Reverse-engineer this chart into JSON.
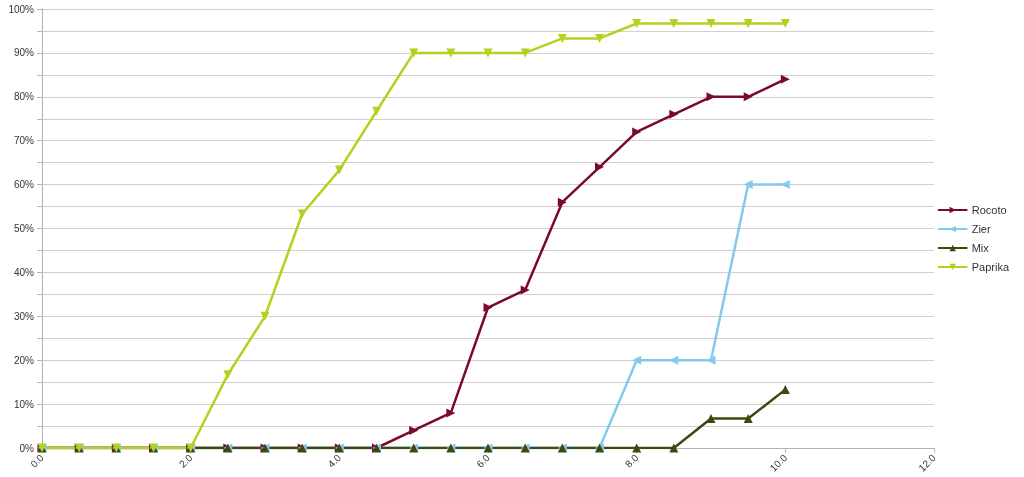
{
  "chart_data": {
    "type": "line",
    "x": [
      0,
      0.5,
      1,
      1.5,
      2,
      2.5,
      3,
      3.5,
      4,
      4.5,
      5,
      5.5,
      6,
      6.5,
      7,
      7.5,
      8,
      8.5,
      9,
      9.5,
      10
    ],
    "series": [
      {
        "name": "Rocoto",
        "color": "#7b0a2a",
        "values": [
          0,
          0,
          0,
          0,
          0,
          0,
          0,
          0,
          0,
          0,
          4,
          8,
          32,
          36,
          56,
          64,
          72,
          76,
          80,
          80,
          84
        ]
      },
      {
        "name": "Zier",
        "color": "#83caec",
        "values": [
          0,
          0,
          0,
          0,
          0,
          0,
          0,
          0,
          0,
          0,
          0,
          0,
          0,
          0,
          0,
          0,
          20,
          20,
          20,
          60,
          60
        ]
      },
      {
        "name": "Mix",
        "color": "#3b4a10",
        "values": [
          0,
          0,
          0,
          0,
          0,
          0,
          0,
          0,
          0,
          0,
          0,
          0,
          0,
          0,
          0,
          0,
          0,
          0,
          6.7,
          6.7,
          13.3
        ]
      },
      {
        "name": "Paprika",
        "color": "#b4d11e",
        "values": [
          0,
          0,
          0,
          0,
          0,
          16.7,
          30,
          53.3,
          63.3,
          76.7,
          90,
          90,
          90,
          90,
          93.3,
          93.3,
          96.7,
          96.7,
          96.7,
          96.7,
          96.7
        ]
      }
    ],
    "xlim": [
      0,
      12
    ],
    "xticks": [
      {
        "value": 0,
        "label": "0.0"
      },
      {
        "value": 2,
        "label": "2.0"
      },
      {
        "value": 4,
        "label": "4.0"
      },
      {
        "value": 6,
        "label": "6.0"
      },
      {
        "value": 8,
        "label": "8.0"
      },
      {
        "value": 10,
        "label": "10.0"
      },
      {
        "value": 12,
        "label": "12.0"
      }
    ],
    "ylim": [
      0,
      100
    ],
    "yticks": [
      {
        "value": 0,
        "label": "0%"
      },
      {
        "value": 5,
        "label": null
      },
      {
        "value": 10,
        "label": "10%"
      },
      {
        "value": 15,
        "label": null
      },
      {
        "value": 20,
        "label": "20%"
      },
      {
        "value": 25,
        "label": null
      },
      {
        "value": 30,
        "label": "30%"
      },
      {
        "value": 35,
        "label": null
      },
      {
        "value": 40,
        "label": "40%"
      },
      {
        "value": 45,
        "label": null
      },
      {
        "value": 50,
        "label": "50%"
      },
      {
        "value": 55,
        "label": null
      },
      {
        "value": 60,
        "label": "60%"
      },
      {
        "value": 65,
        "label": null
      },
      {
        "value": 70,
        "label": "70%"
      },
      {
        "value": 75,
        "label": null
      },
      {
        "value": 80,
        "label": "80%"
      },
      {
        "value": 85,
        "label": null
      },
      {
        "value": 90,
        "label": "90%"
      },
      {
        "value": 95,
        "label": null
      },
      {
        "value": 100,
        "label": "100%"
      }
    ],
    "grid": "y",
    "legend": "right",
    "marker": "triangle",
    "line_style": "solid"
  }
}
